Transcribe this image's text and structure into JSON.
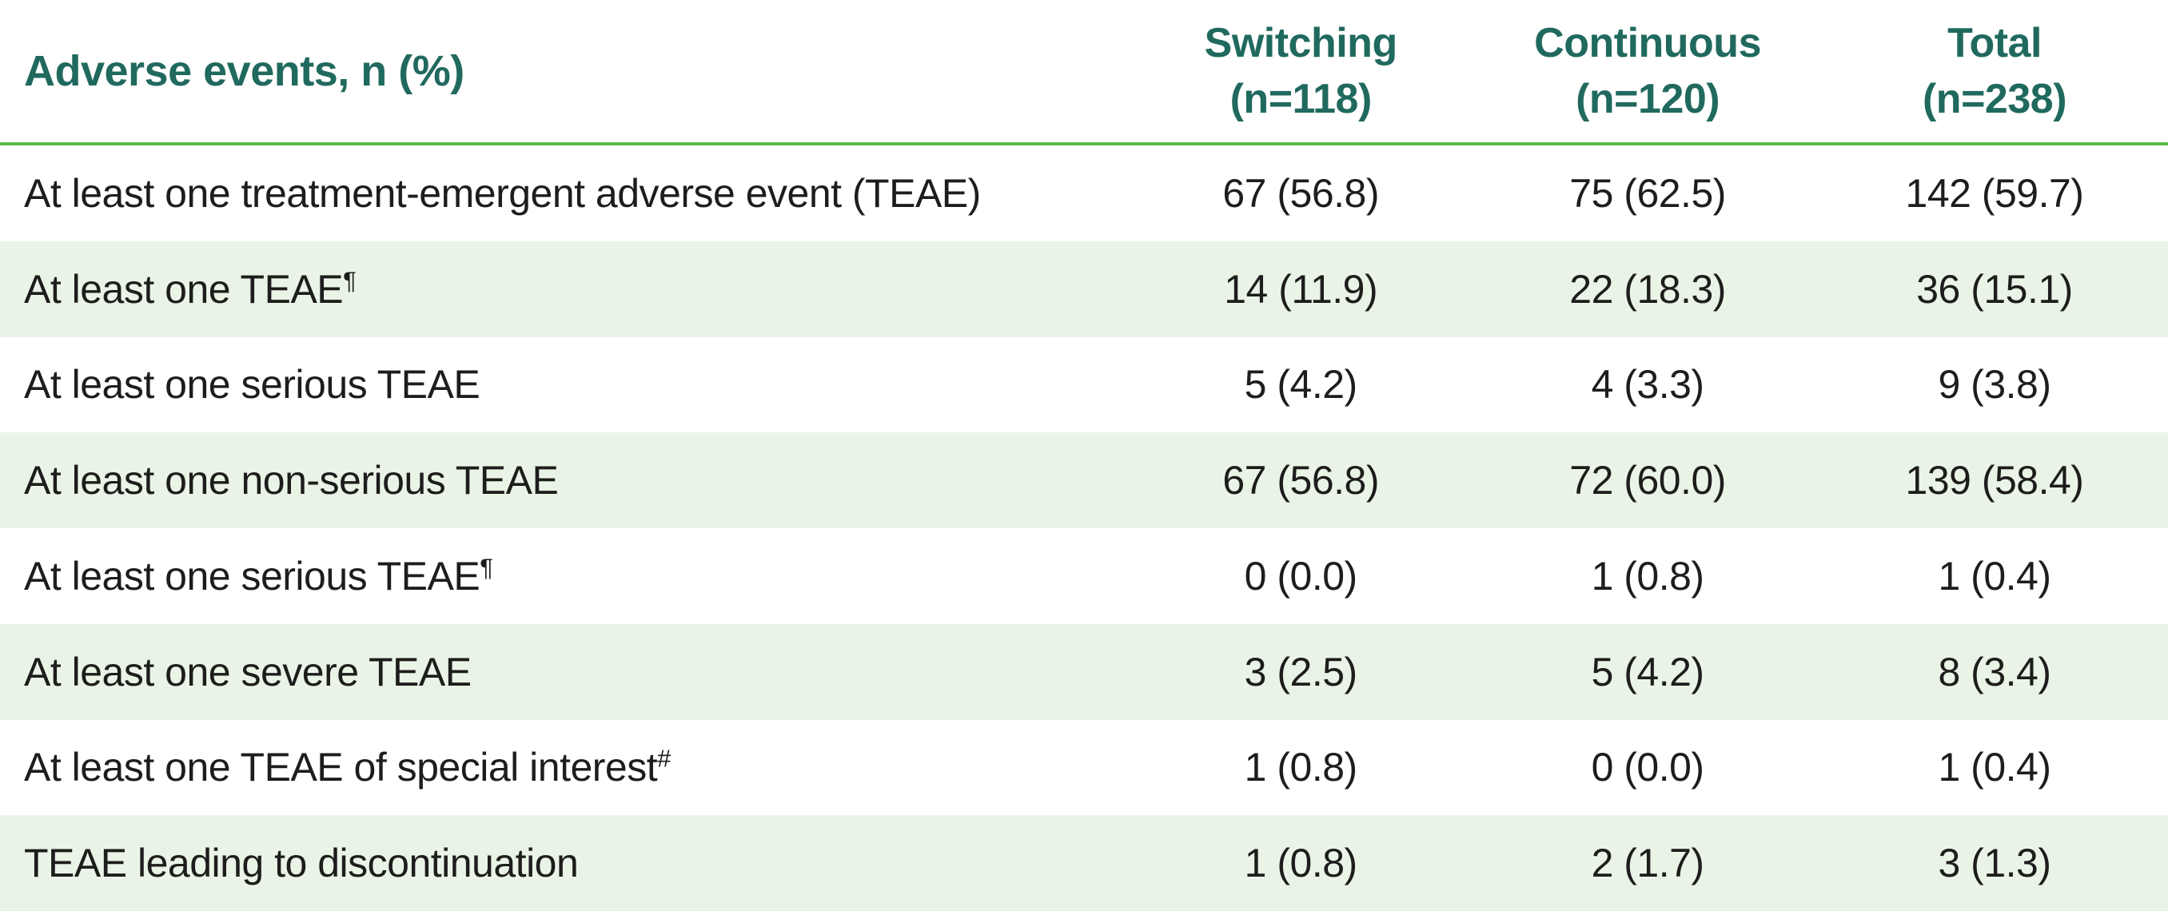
{
  "table": {
    "header": {
      "label": "Adverse events, n (%)",
      "columns": [
        {
          "line1": "Switching",
          "line2": "(n=118)"
        },
        {
          "line1": "Continuous",
          "line2": "(n=120)"
        },
        {
          "line1": "Total",
          "line2": "(n=238)"
        }
      ]
    },
    "rows": [
      {
        "label": "At least one treatment-emergent adverse event (TEAE)",
        "sup": "",
        "switching": "67 (56.8)",
        "continuous": "75 (62.5)",
        "total": "142 (59.7)"
      },
      {
        "label": "At least one TEAE",
        "sup": "¶",
        "switching": "14 (11.9)",
        "continuous": "22 (18.3)",
        "total": "36 (15.1)"
      },
      {
        "label": "At least one serious TEAE",
        "sup": "",
        "switching": "5 (4.2)",
        "continuous": "4 (3.3)",
        "total": "9 (3.8)"
      },
      {
        "label": "At least one non-serious TEAE",
        "sup": "",
        "switching": "67 (56.8)",
        "continuous": "72 (60.0)",
        "total": "139 (58.4)"
      },
      {
        "label": "At least one serious TEAE",
        "sup": "¶",
        "switching": "0 (0.0)",
        "continuous": "1 (0.8)",
        "total": "1 (0.4)"
      },
      {
        "label": "At least one severe TEAE",
        "sup": "",
        "switching": "3 (2.5)",
        "continuous": "5 (4.2)",
        "total": "8 (3.4)"
      },
      {
        "label": "At least one TEAE of special interest",
        "sup": "#",
        "switching": "1 (0.8)",
        "continuous": "0 (0.0)",
        "total": "1 (0.4)"
      },
      {
        "label": "TEAE leading to discontinuation",
        "sup": "",
        "switching": "1 (0.8)",
        "continuous": "2 (1.7)",
        "total": "3 (1.3)"
      }
    ],
    "colors": {
      "header_text": "#20695e",
      "divider_line": "#5ab946",
      "row_shading": "#e9f4e7",
      "body_text": "#1d1d1b"
    }
  }
}
